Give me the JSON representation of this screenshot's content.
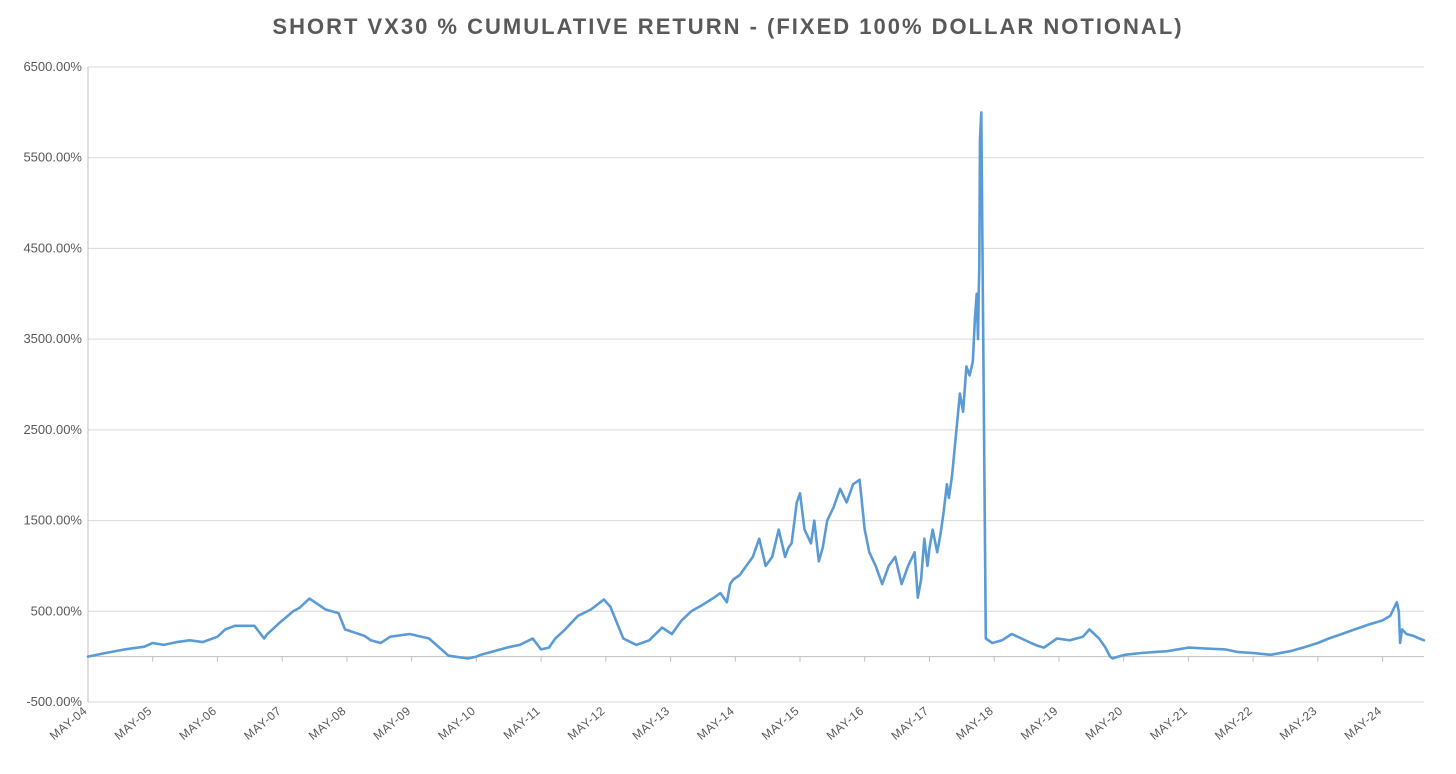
{
  "chart_data": {
    "type": "line",
    "title": "SHORT VX30 % CUMULATIVE RETURN - (FIXED 100% DOLLAR NOTIONAL)",
    "xlabel": "",
    "ylabel": "",
    "ylim": [
      -500,
      6500
    ],
    "y_ticks": [
      "6500.00%",
      "5500.00%",
      "4500.00%",
      "3500.00%",
      "2500.00%",
      "1500.00%",
      "500.00%",
      "-500.00%"
    ],
    "y_tick_values": [
      6500,
      5500,
      4500,
      3500,
      2500,
      1500,
      500,
      -500
    ],
    "x_ticks": [
      "MAY-04",
      "MAY-05",
      "MAY-06",
      "MAY-07",
      "MAY-08",
      "MAY-09",
      "MAY-10",
      "MAY-11",
      "MAY-12",
      "MAY-13",
      "MAY-14",
      "MAY-15",
      "MAY-16",
      "MAY-17",
      "MAY-18",
      "MAY-19",
      "MAY-20",
      "MAY-21",
      "MAY-22",
      "MAY-23",
      "MAY-24"
    ],
    "xlim": [
      2004.33,
      2024.97
    ],
    "grid": true,
    "legend": "none",
    "series_color": "#5B9BD5",
    "series": [
      {
        "x": [
          2004.33,
          2004.6,
          2004.9,
          2005.2,
          2005.33,
          2005.5,
          2005.7,
          2005.9,
          2006.1,
          2006.33,
          2006.45,
          2006.6,
          2006.9,
          2007.05,
          2007.1,
          2007.15,
          2007.3,
          2007.5,
          2007.6,
          2007.75,
          2008.0,
          2008.2,
          2008.3,
          2008.6,
          2008.7,
          2008.85,
          2009.0,
          2009.3,
          2009.6,
          2009.9,
          2010.2,
          2010.33,
          2010.4,
          2010.6,
          2010.8,
          2011.0,
          2011.2,
          2011.33,
          2011.45,
          2011.55,
          2011.7,
          2011.9,
          2012.1,
          2012.3,
          2012.4,
          2012.6,
          2012.8,
          2013.0,
          2013.2,
          2013.35,
          2013.5,
          2013.65,
          2013.8,
          2014.0,
          2014.1,
          2014.2,
          2014.25,
          2014.3,
          2014.4,
          2014.5,
          2014.6,
          2014.7,
          2014.8,
          2014.9,
          2015.0,
          2015.1,
          2015.15,
          2015.2,
          2015.28,
          2015.33,
          2015.4,
          2015.5,
          2015.55,
          2015.62,
          2015.68,
          2015.75,
          2015.85,
          2015.95,
          2016.05,
          2016.15,
          2016.25,
          2016.33,
          2016.4,
          2016.5,
          2016.6,
          2016.7,
          2016.8,
          2016.9,
          2017.0,
          2017.1,
          2017.15,
          2017.2,
          2017.25,
          2017.3,
          2017.33,
          2017.38,
          2017.45,
          2017.5,
          2017.55,
          2017.6,
          2017.63,
          2017.68,
          2017.72,
          2017.76,
          2017.8,
          2017.85,
          2017.9,
          2017.95,
          2018.0,
          2018.03,
          2018.06,
          2018.08,
          2018.09,
          2018.1,
          2018.11,
          2018.13,
          2018.2,
          2018.3,
          2018.45,
          2018.6,
          2018.75,
          2018.9,
          2019.0,
          2019.1,
          2019.3,
          2019.5,
          2019.7,
          2019.8,
          2019.95,
          2020.05,
          2020.12,
          2020.16,
          2020.2,
          2020.35,
          2020.6,
          2020.8,
          2021.0,
          2021.33,
          2021.6,
          2021.9,
          2022.1,
          2022.33,
          2022.6,
          2022.9,
          2023.1,
          2023.33,
          2023.5,
          2023.7,
          2023.9,
          2024.1,
          2024.33,
          2024.45,
          2024.55,
          2024.58,
          2024.6,
          2024.63,
          2024.7,
          2024.8,
          2024.9,
          2024.97
        ],
        "values": [
          0,
          40,
          80,
          110,
          150,
          130,
          160,
          180,
          160,
          220,
          300,
          340,
          340,
          200,
          250,
          280,
          380,
          500,
          540,
          640,
          520,
          480,
          300,
          230,
          180,
          150,
          220,
          250,
          200,
          10,
          -20,
          0,
          20,
          60,
          100,
          130,
          200,
          80,
          100,
          200,
          300,
          450,
          520,
          630,
          550,
          200,
          130,
          180,
          320,
          250,
          400,
          500,
          560,
          650,
          700,
          600,
          800,
          850,
          900,
          1000,
          1100,
          1300,
          1000,
          1100,
          1400,
          1100,
          1200,
          1250,
          1700,
          1800,
          1400,
          1250,
          1500,
          1050,
          1200,
          1500,
          1650,
          1850,
          1700,
          1900,
          1950,
          1400,
          1150,
          1000,
          800,
          1000,
          1100,
          800,
          1000,
          1150,
          650,
          850,
          1300,
          1000,
          1200,
          1400,
          1150,
          1350,
          1600,
          1900,
          1750,
          2000,
          2300,
          2600,
          2900,
          2700,
          3200,
          3100,
          3250,
          3700,
          4000,
          3500,
          4000,
          4300,
          5700,
          6000,
          200,
          150,
          180,
          250,
          200,
          150,
          120,
          100,
          200,
          180,
          220,
          300,
          200,
          100,
          0,
          -20,
          -10,
          20,
          40,
          50,
          60,
          100,
          90,
          80,
          50,
          40,
          20,
          60,
          100,
          150,
          200,
          250,
          300,
          350,
          400,
          450,
          600,
          500,
          150,
          300,
          250,
          230,
          200,
          180
        ]
      }
    ]
  }
}
